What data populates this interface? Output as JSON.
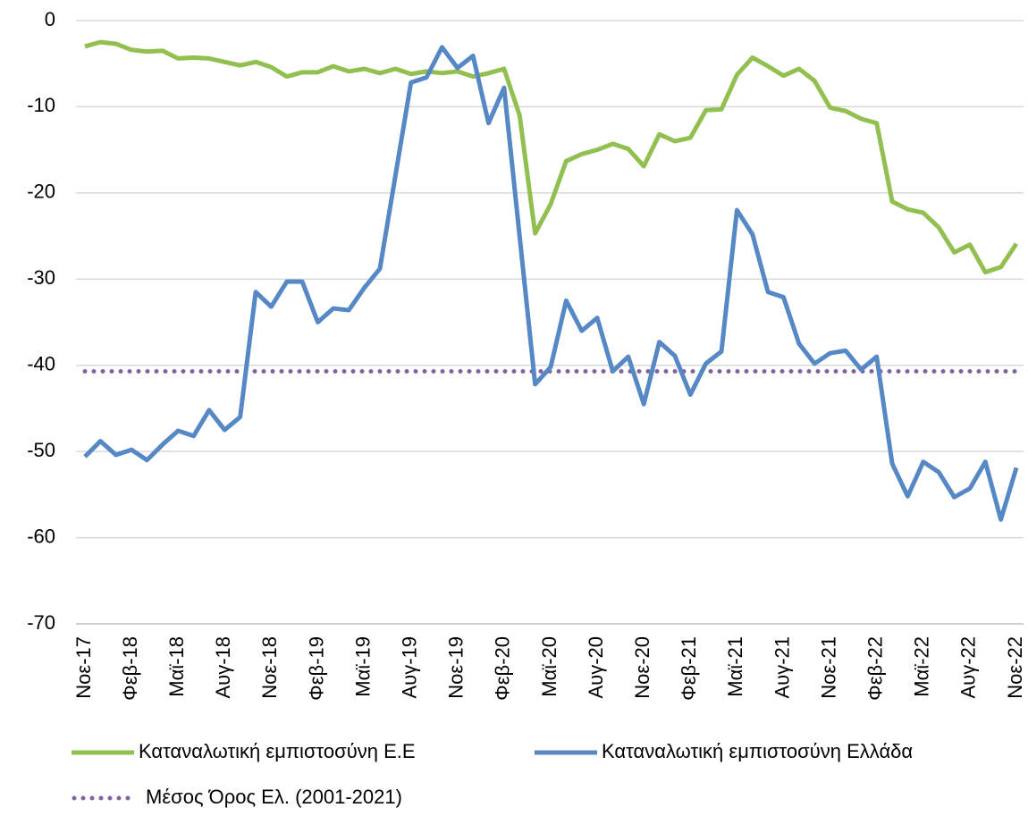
{
  "chart_data": {
    "type": "line",
    "categories": [
      "Νοε-17",
      null,
      null,
      "Φεβ-18",
      null,
      null,
      "Μαϊ-18",
      null,
      null,
      "Αυγ-18",
      null,
      null,
      "Νοε-18",
      null,
      null,
      "Φεβ-19",
      null,
      null,
      "Μαϊ-19",
      null,
      null,
      "Αυγ-19",
      null,
      null,
      "Νοε-19",
      null,
      null,
      "Φεβ-20",
      null,
      null,
      "Μαϊ-20",
      null,
      null,
      "Αυγ-20",
      null,
      null,
      "Νοε-20",
      null,
      null,
      "Φεβ-21",
      null,
      null,
      "Μαϊ-21",
      null,
      null,
      "Αυγ-21",
      null,
      null,
      "Νοε-21",
      null,
      null,
      "Φεβ-22",
      null,
      null,
      "Μαϊ-22",
      null,
      null,
      "Αυγ-22",
      null,
      null,
      "Νοε-22"
    ],
    "series": [
      {
        "name": "Καταναλωτική εμπιστοσύνη Ε.Ε",
        "color": "#92c050",
        "style": "solid",
        "values": [
          -3.0,
          -2.5,
          -2.7,
          -3.4,
          -3.6,
          -3.5,
          -4.4,
          -4.3,
          -4.4,
          -4.8,
          -5.2,
          -4.8,
          -5.4,
          -6.5,
          -6.0,
          -6.0,
          -5.3,
          -5.9,
          -5.6,
          -6.1,
          -5.6,
          -6.2,
          -5.9,
          -6.1,
          -5.9,
          -6.5,
          -6.1,
          -5.6,
          -11.0,
          -24.7,
          -21.3,
          -16.3,
          -15.5,
          -15.0,
          -14.3,
          -14.9,
          -16.9,
          -13.2,
          -14.0,
          -13.6,
          -10.4,
          -10.3,
          -6.3,
          -4.3,
          -5.3,
          -6.4,
          -5.6,
          -7.0,
          -10.1,
          -10.5,
          -11.4,
          -11.9,
          -21.0,
          -21.9,
          -22.3,
          -24.0,
          -26.9,
          -26.0,
          -29.2,
          -28.6,
          -25.9
        ]
      },
      {
        "name": "Καταναλωτική εμπιστοσύνη Ελλάδα",
        "color": "#5588c4",
        "style": "solid",
        "values": [
          -50.6,
          -48.8,
          -50.4,
          -49.8,
          -51.0,
          -49.2,
          -47.6,
          -48.2,
          -45.2,
          -47.5,
          -46.0,
          -31.5,
          -33.2,
          -30.3,
          -30.3,
          -35.0,
          -33.4,
          -33.6,
          -31.0,
          -28.8,
          -18.0,
          -7.2,
          -6.6,
          -3.1,
          -5.5,
          -4.1,
          -11.9,
          -7.8,
          -25.0,
          -42.2,
          -40.2,
          -32.5,
          -36.0,
          -34.5,
          -40.7,
          -39.0,
          -44.5,
          -37.3,
          -38.9,
          -43.4,
          -39.8,
          -38.4,
          -22.0,
          -24.8,
          -31.5,
          -32.1,
          -37.5,
          -39.8,
          -38.6,
          -38.3,
          -40.5,
          -39.0,
          -51.4,
          -55.2,
          -51.2,
          -52.4,
          -55.3,
          -54.3,
          -51.2,
          -57.9,
          -51.9
        ]
      },
      {
        "name": "Μέσος Όρος Ελ. (2001-2021)",
        "color": "#8064a2",
        "style": "dotted",
        "values": [
          -40.7,
          -40.7,
          -40.7,
          -40.7,
          -40.7,
          -40.7,
          -40.7,
          -40.7,
          -40.7,
          -40.7,
          -40.7,
          -40.7,
          -40.7,
          -40.7,
          -40.7,
          -40.7,
          -40.7,
          -40.7,
          -40.7,
          -40.7,
          -40.7,
          -40.7,
          -40.7,
          -40.7,
          -40.7,
          -40.7,
          -40.7,
          -40.7,
          -40.7,
          -40.7,
          -40.7,
          -40.7,
          -40.7,
          -40.7,
          -40.7,
          -40.7,
          -40.7,
          -40.7,
          -40.7,
          -40.7,
          -40.7,
          -40.7,
          -40.7,
          -40.7,
          -40.7,
          -40.7,
          -40.7,
          -40.7,
          -40.7,
          -40.7,
          -40.7,
          -40.7,
          -40.7,
          -40.7,
          -40.7,
          -40.7,
          -40.7,
          -40.7,
          -40.7,
          -40.7,
          -40.7
        ]
      }
    ],
    "ylim": [
      -70,
      0
    ],
    "yticks": [
      0,
      -10,
      -20,
      -30,
      -40,
      -50,
      -60,
      -70
    ],
    "grid": true,
    "legend": "bottom"
  }
}
